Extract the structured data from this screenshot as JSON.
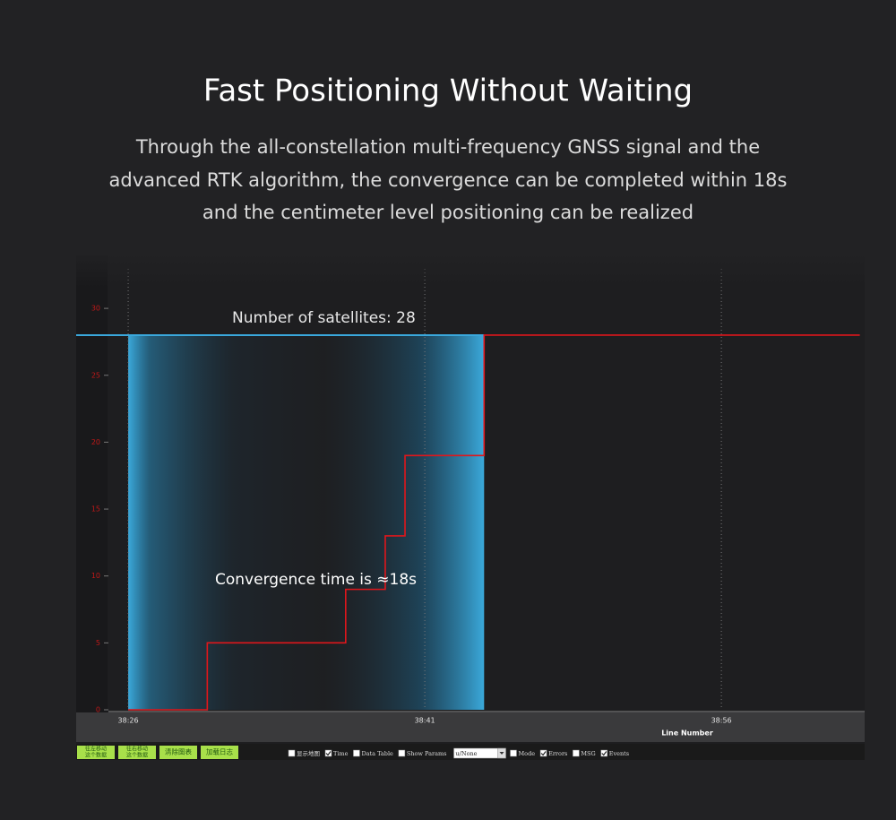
{
  "chart_data": {
    "type": "line",
    "title": "Fast Positioning Without Waiting",
    "subtitle": [
      "Through the all-constellation multi-frequency GNSS signal and the",
      "advanced RTK algorithm, the convergence can be completed within 18s",
      "and the centimeter level positioning can be realized"
    ],
    "annotations": [
      "Number of satellites: 28",
      "Convergence time is ≈18s"
    ],
    "xlabel": "Line Number",
    "x": [
      2306,
      2310,
      2310,
      2317,
      2317,
      2319,
      2319,
      2320,
      2320,
      2324,
      2324,
      2343
    ],
    "series": [
      {
        "color": "#e0161b",
        "values": [
          0,
          0,
          5,
          5,
          9,
          9,
          13,
          13,
          19,
          19,
          28,
          28
        ]
      }
    ],
    "xlim": [
      2305,
      2343
    ],
    "ylim": [
      0,
      32
    ],
    "xticks": [
      {
        "value": 2306,
        "label": "38:26"
      },
      {
        "value": 2321,
        "label": "38:41"
      },
      {
        "value": 2336,
        "label": "38:56"
      }
    ],
    "yticks": [
      0,
      5,
      10,
      15,
      20,
      25,
      30
    ],
    "grid": true
  },
  "toolbar": {
    "buttons": [
      [
        "往左移动",
        "这个数据"
      ],
      [
        "往右移动",
        "这个数据"
      ],
      [
        "清除图表"
      ],
      [
        "加载日志"
      ]
    ],
    "checkboxes_left": [
      {
        "label": "显示地图",
        "checked": false
      },
      {
        "label": "Time",
        "checked": true
      },
      {
        "label": "Data Table",
        "checked": false
      },
      {
        "label": "Show Params",
        "checked": false
      }
    ],
    "select": "u/None",
    "checkboxes_right": [
      {
        "label": "Mode",
        "checked": false
      },
      {
        "label": "Errors",
        "checked": true
      },
      {
        "label": "MSG",
        "checked": false
      },
      {
        "label": "Events",
        "checked": true
      }
    ]
  }
}
